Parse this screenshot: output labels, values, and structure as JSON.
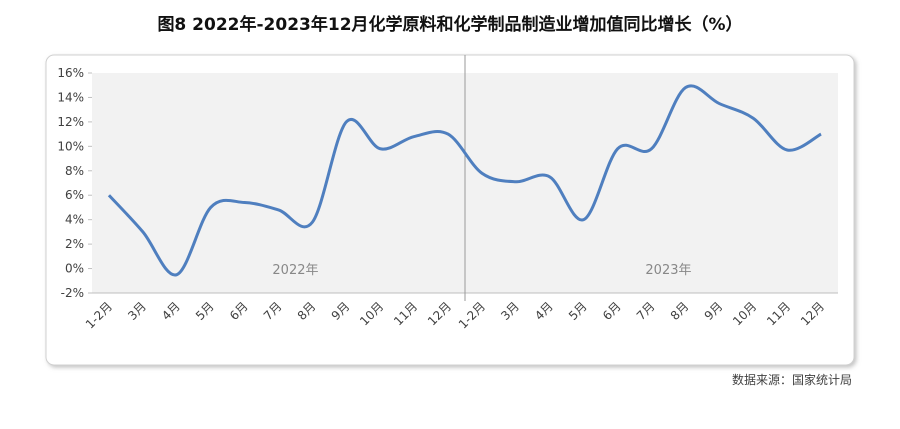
{
  "chart_data": {
    "type": "line",
    "title": "图8 2022年-2023年12月化学原料和化学制品制造业增加值同比增长（%）",
    "source": "数据来源：国家统计局",
    "categories": [
      "1-2月",
      "3月",
      "4月",
      "5月",
      "6月",
      "7月",
      "8月",
      "9月",
      "10月",
      "11月",
      "12月",
      "1-2月",
      "3月",
      "4月",
      "5月",
      "6月",
      "7月",
      "8月",
      "9月",
      "10月",
      "11月",
      "12月"
    ],
    "series": [
      {
        "color": "#4f7fbf",
        "values": [
          6.0,
          3.0,
          -0.5,
          5.0,
          5.4,
          4.8,
          3.8,
          12.0,
          9.8,
          10.8,
          11.0,
          7.8,
          7.1,
          7.5,
          4.0,
          9.8,
          9.8,
          14.8,
          13.5,
          12.3,
          9.7,
          11.0
        ]
      }
    ],
    "year_labels": [
      "2022年",
      "2023年"
    ],
    "ylim": [
      -2,
      16
    ],
    "yticks": [
      {
        "value": -2,
        "label": "-2%"
      },
      {
        "value": 0,
        "label": "0%"
      },
      {
        "value": 2,
        "label": "2%"
      },
      {
        "value": 4,
        "label": "4%"
      },
      {
        "value": 6,
        "label": "6%"
      },
      {
        "value": 8,
        "label": "8%"
      },
      {
        "value": 10,
        "label": "10%"
      },
      {
        "value": 12,
        "label": "12%"
      },
      {
        "value": 14,
        "label": "14%"
      },
      {
        "value": 16,
        "label": "16%"
      }
    ]
  }
}
